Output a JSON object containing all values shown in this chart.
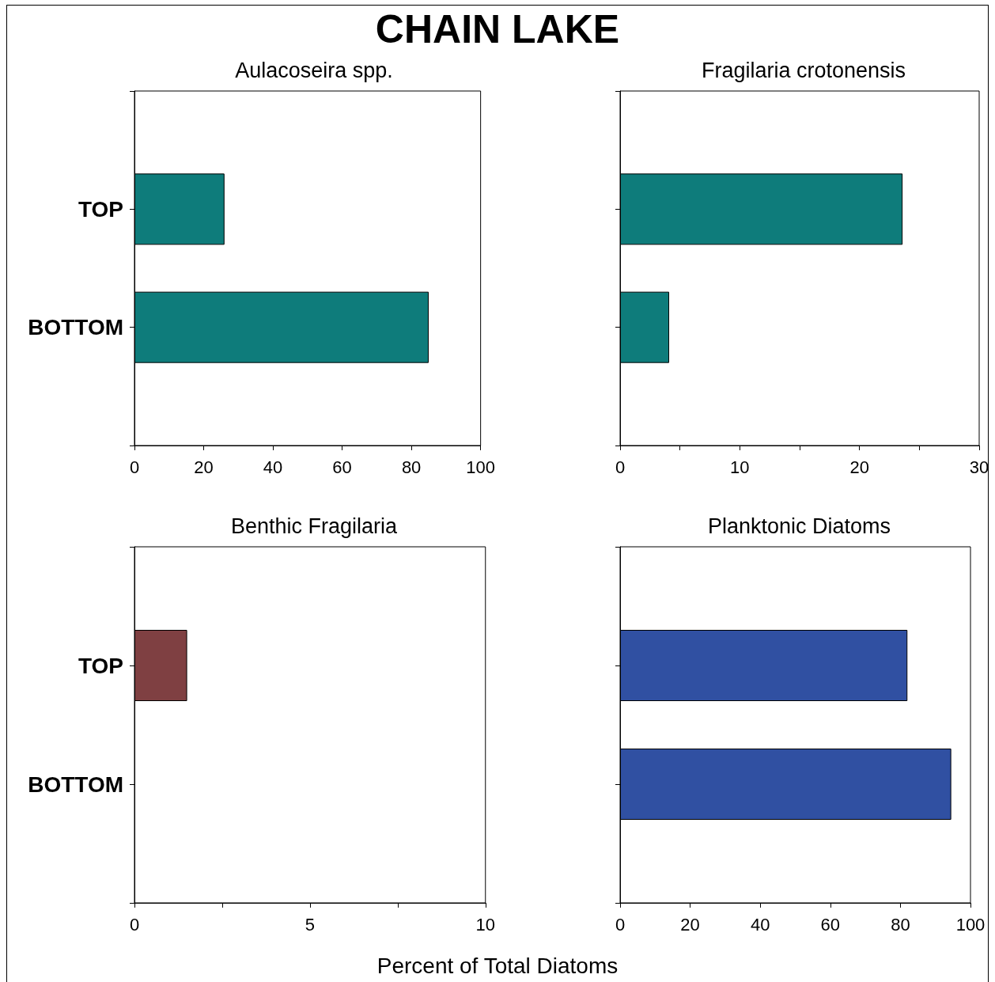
{
  "chart_data": [
    {
      "type": "bar",
      "orientation": "horizontal",
      "title": "Aulacoseira spp.",
      "annotations": [
        "CHAIN LAKE"
      ],
      "categories": [
        "TOP",
        "BOTTOM"
      ],
      "values": [
        26,
        85
      ],
      "color": "#0e7c7b",
      "xlim": [
        0,
        100
      ],
      "xticks": [
        0,
        20,
        40,
        60,
        80,
        100
      ],
      "grid": false
    },
    {
      "type": "bar",
      "orientation": "horizontal",
      "title": "Fragilaria crotonensis",
      "categories": [
        null,
        null
      ],
      "values": [
        23.6,
        4.1
      ],
      "color": "#0e7c7b",
      "xlim": [
        0,
        30
      ],
      "xticks": [
        0,
        {
          "value": 5,
          "label": null
        },
        10,
        {
          "value": 15,
          "label": null
        },
        20,
        {
          "value": 25,
          "label": null
        },
        30
      ],
      "grid": false
    },
    {
      "type": "bar",
      "orientation": "horizontal",
      "title": "Benthic Fragilaria",
      "categories": [
        "TOP",
        "BOTTOM"
      ],
      "values": [
        1.5,
        0
      ],
      "color": "#7f4042",
      "xlim": [
        0,
        10
      ],
      "xticks": [
        0,
        {
          "value": 2.5,
          "label": null
        },
        5,
        {
          "value": 7.5,
          "label": null
        },
        10
      ],
      "grid": false
    },
    {
      "type": "bar",
      "orientation": "horizontal",
      "title": "Planktonic Diatoms",
      "annotations": [
        "Percent of Total Diatoms"
      ],
      "categories": [
        null,
        null
      ],
      "values": [
        82,
        94.5
      ],
      "color": "#3050a2",
      "xlim": [
        0,
        100
      ],
      "xticks": [
        0,
        20,
        40,
        60,
        80,
        100
      ],
      "grid": false
    }
  ]
}
